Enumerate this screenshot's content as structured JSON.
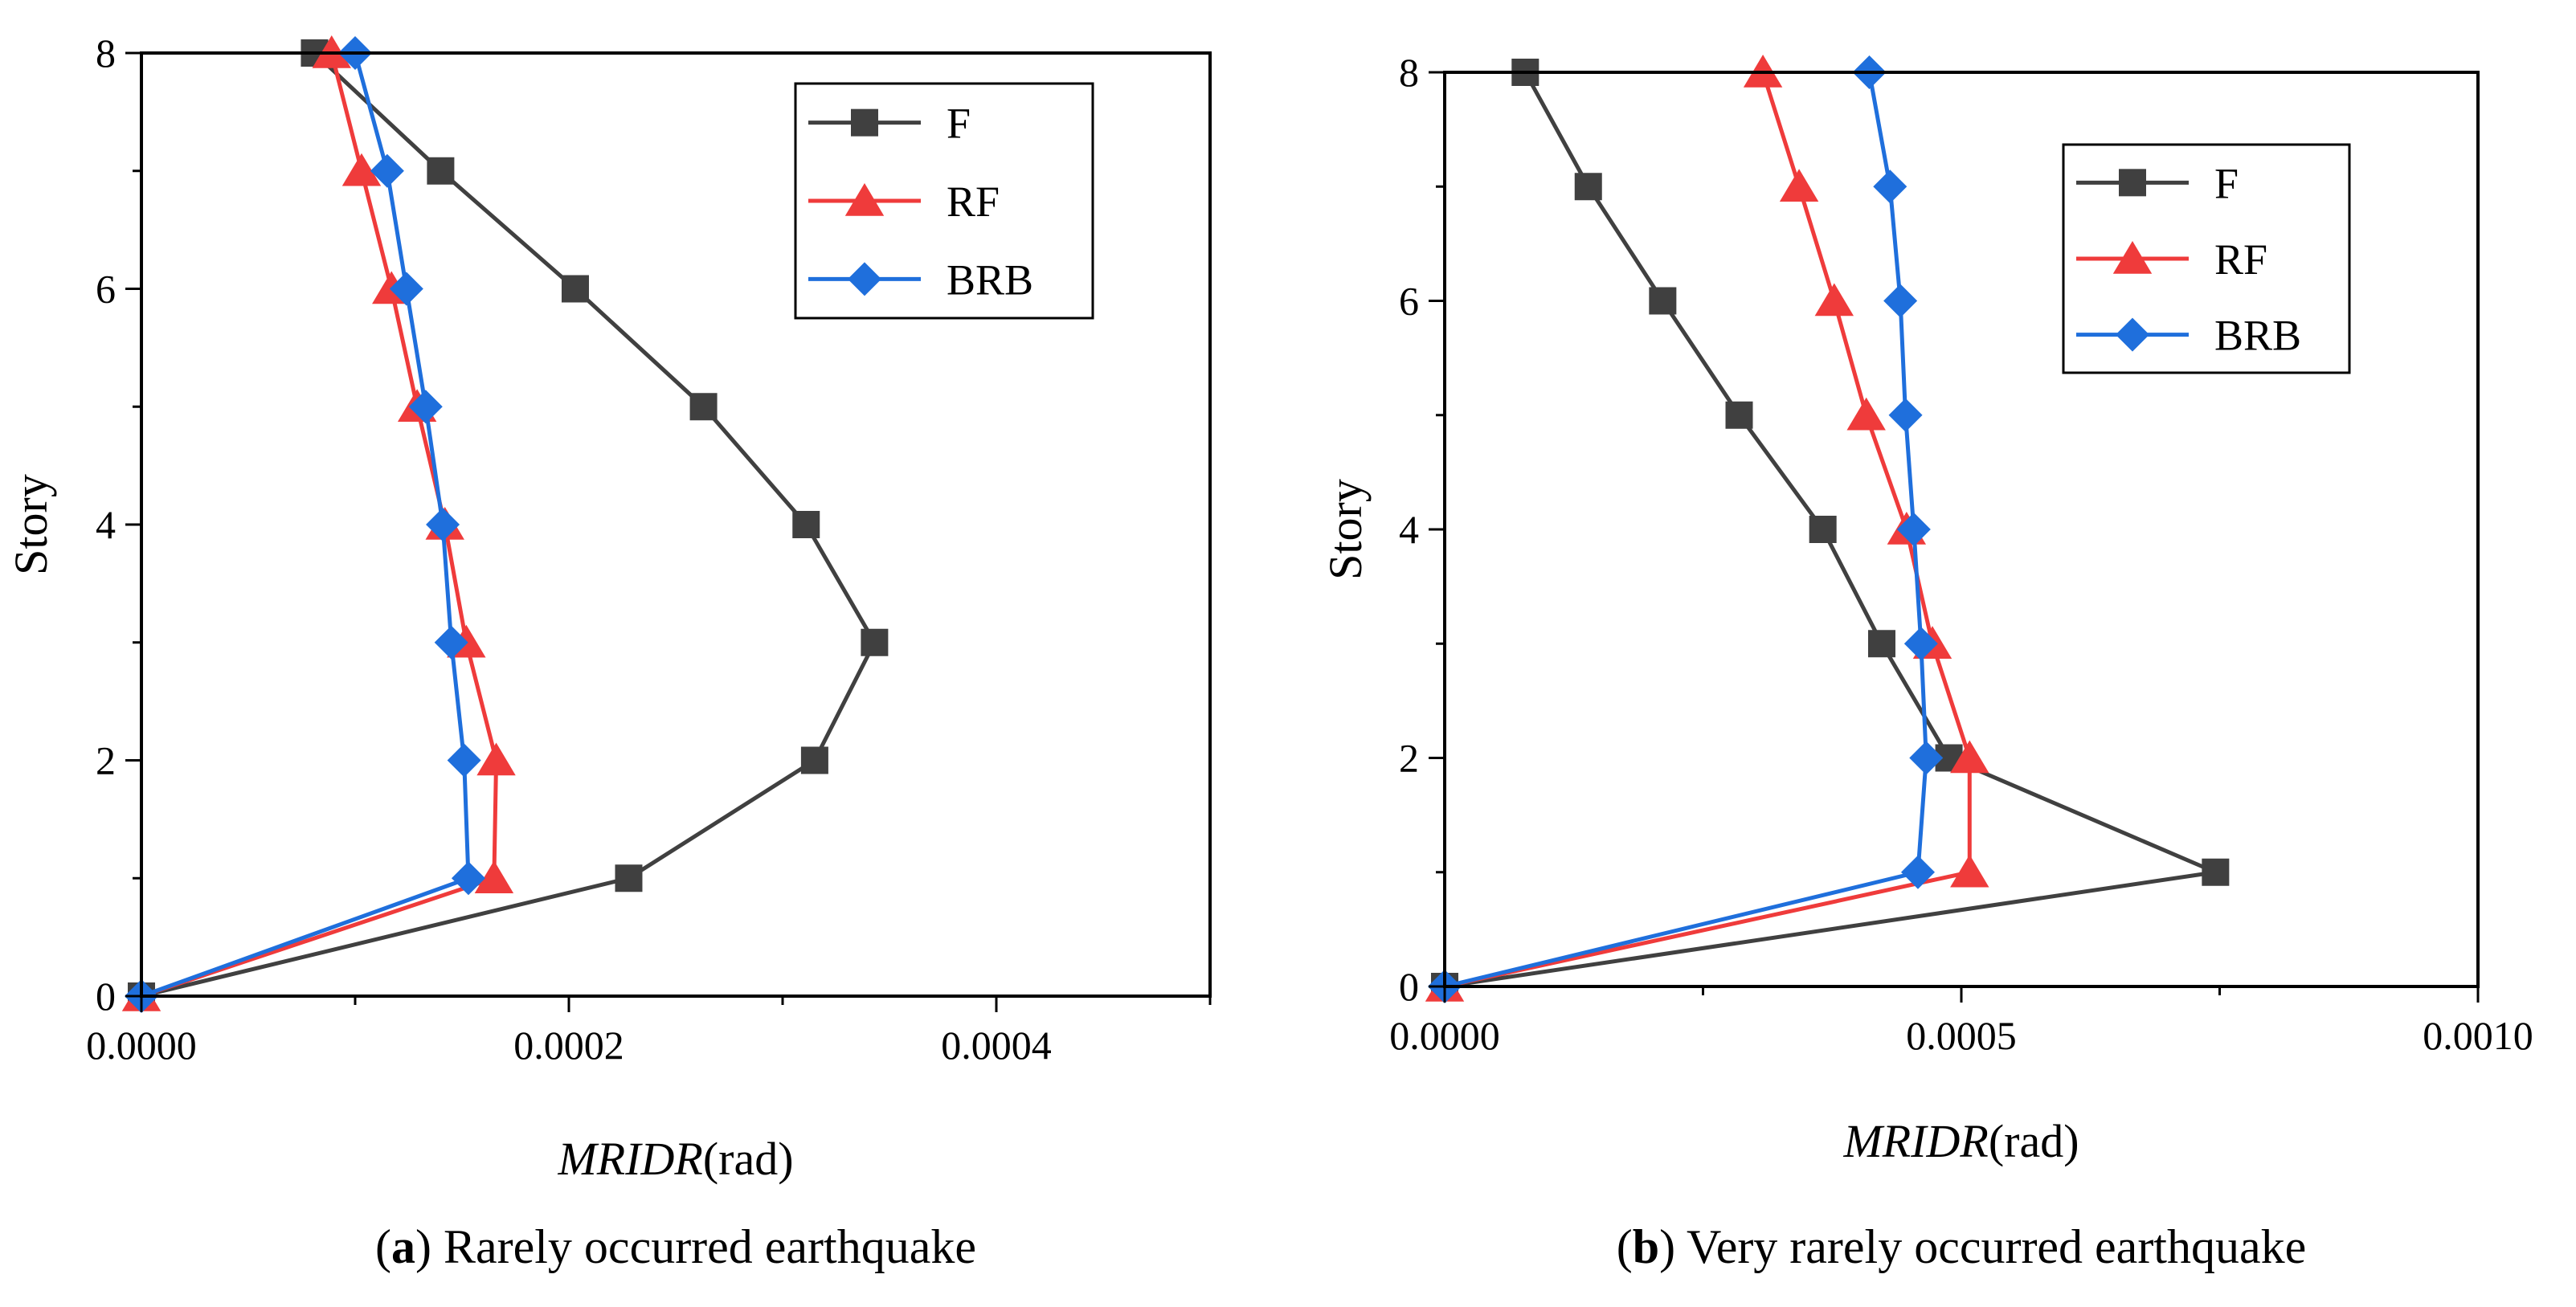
{
  "chart_data": [
    {
      "type": "line",
      "panel": "a",
      "caption_letter": "a",
      "caption_text": "Rarely occurred earthquake",
      "xlabel_italic": "MRIDR",
      "xlabel_unit": "(rad)",
      "ylabel": "Story",
      "xlim": [
        0,
        0.0005
      ],
      "ylim": [
        0,
        8
      ],
      "x_ticks": [
        0,
        0.0002,
        0.0004
      ],
      "x_tick_labels": [
        "0.0000",
        "0.0002",
        "0.0004"
      ],
      "y_ticks": [
        0,
        2,
        4,
        6,
        8
      ],
      "y_tick_labels": [
        "0",
        "2",
        "4",
        "6",
        "8"
      ],
      "grid": false,
      "legend_position": "top-right",
      "series": [
        {
          "name": "F",
          "marker": "square",
          "color": "#404040",
          "x": [
            0,
            0.000228,
            0.000315,
            0.000343,
            0.000311,
            0.000263,
            0.000203,
            0.00014,
            8.1e-05
          ],
          "y": [
            0,
            1,
            2,
            3,
            4,
            5,
            6,
            7,
            8
          ]
        },
        {
          "name": "RF",
          "marker": "triangle",
          "color": "#ef3b3b",
          "x": [
            0,
            0.000165,
            0.000166,
            0.000152,
            0.000142,
            0.000129,
            0.000117,
            0.000103,
            8.9e-05
          ],
          "y": [
            0,
            1,
            2,
            3,
            4,
            5,
            6,
            7,
            8
          ]
        },
        {
          "name": "BRB",
          "marker": "diamond",
          "color": "#1f6fdc",
          "x": [
            0,
            0.000153,
            0.000151,
            0.000145,
            0.000141,
            0.000133,
            0.000124,
            0.000115,
            0.0001
          ],
          "y": [
            0,
            1,
            2,
            3,
            4,
            5,
            6,
            7,
            8
          ]
        }
      ]
    },
    {
      "type": "line",
      "panel": "b",
      "caption_letter": "b",
      "caption_text": "Very rarely occurred earthquake",
      "xlabel_italic": "MRIDR",
      "xlabel_unit": "(rad)",
      "ylabel": "Story",
      "xlim": [
        0,
        0.001
      ],
      "ylim": [
        0,
        8
      ],
      "x_ticks": [
        0,
        0.0005,
        0.001
      ],
      "x_tick_labels": [
        "0.0000",
        "0.0005",
        "0.0010"
      ],
      "y_ticks": [
        0,
        2,
        4,
        6,
        8
      ],
      "y_tick_labels": [
        "0",
        "2",
        "4",
        "6",
        "8"
      ],
      "grid": false,
      "legend_position": "top-right",
      "series": [
        {
          "name": "F",
          "marker": "square",
          "color": "#404040",
          "x": [
            0,
            0.000746,
            0.000488,
            0.000423,
            0.000366,
            0.000285,
            0.000211,
            0.000139,
            7.8e-05
          ],
          "y": [
            0,
            1,
            2,
            3,
            4,
            5,
            6,
            7,
            8
          ]
        },
        {
          "name": "RF",
          "marker": "triangle",
          "color": "#ef3b3b",
          "x": [
            0,
            0.000508,
            0.000508,
            0.000472,
            0.000447,
            0.000408,
            0.000377,
            0.000343,
            0.000308
          ],
          "y": [
            0,
            1,
            2,
            3,
            4,
            5,
            6,
            7,
            8
          ]
        },
        {
          "name": "BRB",
          "marker": "diamond",
          "color": "#1f6fdc",
          "x": [
            0,
            0.000458,
            0.000466,
            0.000461,
            0.000454,
            0.000446,
            0.000441,
            0.000431,
            0.000411
          ],
          "y": [
            0,
            1,
            2,
            3,
            4,
            5,
            6,
            7,
            8
          ]
        }
      ]
    }
  ]
}
